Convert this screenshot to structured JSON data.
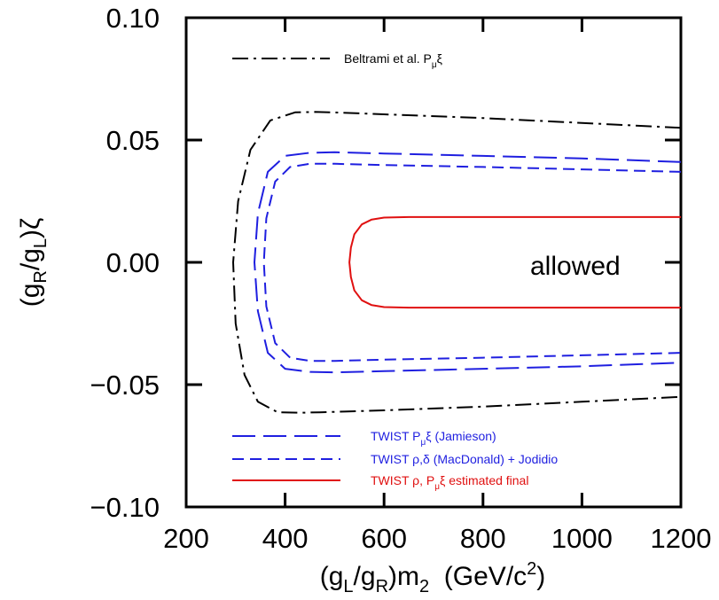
{
  "chart_data": {
    "type": "line",
    "xlabel": {
      "prefix": "(g",
      "sub1": "L",
      "mid": "/g",
      "sub2": "R",
      "tail": ")m",
      "sub3": "2",
      "units": "  (GeV/c",
      "sup": "2",
      "close": ")"
    },
    "ylabel": {
      "prefix": "(g",
      "sub1": "R",
      "mid": "/g",
      "sub2": "L",
      "tail": ")ζ"
    },
    "xlim": [
      200,
      1200
    ],
    "ylim": [
      -0.1,
      0.1
    ],
    "x_ticks": [
      200,
      400,
      600,
      800,
      1000,
      1200
    ],
    "x_tick_labels": [
      "200",
      "400",
      "600",
      "800",
      "1000",
      "1200"
    ],
    "y_ticks": [
      -0.1,
      -0.05,
      0.0,
      0.05,
      0.1
    ],
    "y_tick_labels": [
      "−0.10",
      "−0.05",
      "0.00",
      "0.05",
      "0.10"
    ],
    "grid": false,
    "annotation": "allowed",
    "series": [
      {
        "key": "beltrami",
        "name": "Beltrami et al. P_μ ξ",
        "legend_parts": [
          "Beltrami et al. P",
          "μ",
          "ξ"
        ],
        "color": "#000000",
        "style": "dashdot",
        "x": [
          1200,
          1000,
          800,
          600,
          500,
          460,
          420,
          370,
          330,
          305,
          295,
          300,
          318,
          345,
          385,
          430,
          470,
          520,
          600,
          800,
          1000,
          1200
        ],
        "y": [
          0.055,
          0.057,
          0.059,
          0.0605,
          0.0613,
          0.0615,
          0.0613,
          0.058,
          0.046,
          0.025,
          0.0,
          -0.025,
          -0.046,
          -0.057,
          -0.0613,
          -0.0615,
          -0.0613,
          -0.061,
          -0.0605,
          -0.059,
          -0.057,
          -0.055
        ]
      },
      {
        "key": "jamieson",
        "name": "TWIST P_μ ξ (Jamieson)",
        "legend_parts": [
          "TWIST  P",
          "μ",
          "ξ  (Jamieson)"
        ],
        "color": "#1f1fe0",
        "style": "longdash",
        "x": [
          1200,
          1000,
          800,
          600,
          500,
          450,
          400,
          365,
          345,
          338,
          345,
          365,
          400,
          450,
          500,
          600,
          800,
          1000,
          1200
        ],
        "y": [
          0.041,
          0.0425,
          0.0435,
          0.0445,
          0.045,
          0.0448,
          0.0435,
          0.037,
          0.02,
          0.0,
          -0.02,
          -0.037,
          -0.0435,
          -0.0448,
          -0.045,
          -0.0445,
          -0.0435,
          -0.0425,
          -0.041
        ]
      },
      {
        "key": "macdonald",
        "name": "TWIST ρ,δ (MacDonald) + Jodidio",
        "legend_parts": [
          "TWIST  ρ,δ  (MacDonald)  +  Jodidio"
        ],
        "color": "#1f1fe0",
        "style": "shortdash",
        "x": [
          1200,
          1000,
          800,
          600,
          500,
          450,
          410,
          380,
          362,
          357,
          362,
          380,
          410,
          450,
          500,
          600,
          800,
          1000,
          1200
        ],
        "y": [
          0.037,
          0.038,
          0.039,
          0.0398,
          0.0403,
          0.0403,
          0.039,
          0.033,
          0.018,
          0.0,
          -0.018,
          -0.033,
          -0.039,
          -0.0403,
          -0.0403,
          -0.0398,
          -0.039,
          -0.038,
          -0.037
        ]
      },
      {
        "key": "final",
        "name": "TWIST ρ, P_μ ξ estimated final",
        "legend_parts": [
          "TWIST  ρ,  P",
          "μ",
          "ξ  estimated final"
        ],
        "color": "#e01010",
        "style": "solid",
        "x": [
          1200,
          1000,
          800,
          650,
          600,
          575,
          555,
          540,
          533,
          530,
          533,
          540,
          555,
          575,
          600,
          650,
          800,
          1000,
          1200
        ],
        "y": [
          0.0185,
          0.0185,
          0.0185,
          0.0185,
          0.0183,
          0.0175,
          0.0155,
          0.0115,
          0.006,
          0.0,
          -0.006,
          -0.0115,
          -0.0155,
          -0.0175,
          -0.0183,
          -0.0185,
          -0.0185,
          -0.0185,
          -0.0185
        ]
      }
    ]
  }
}
